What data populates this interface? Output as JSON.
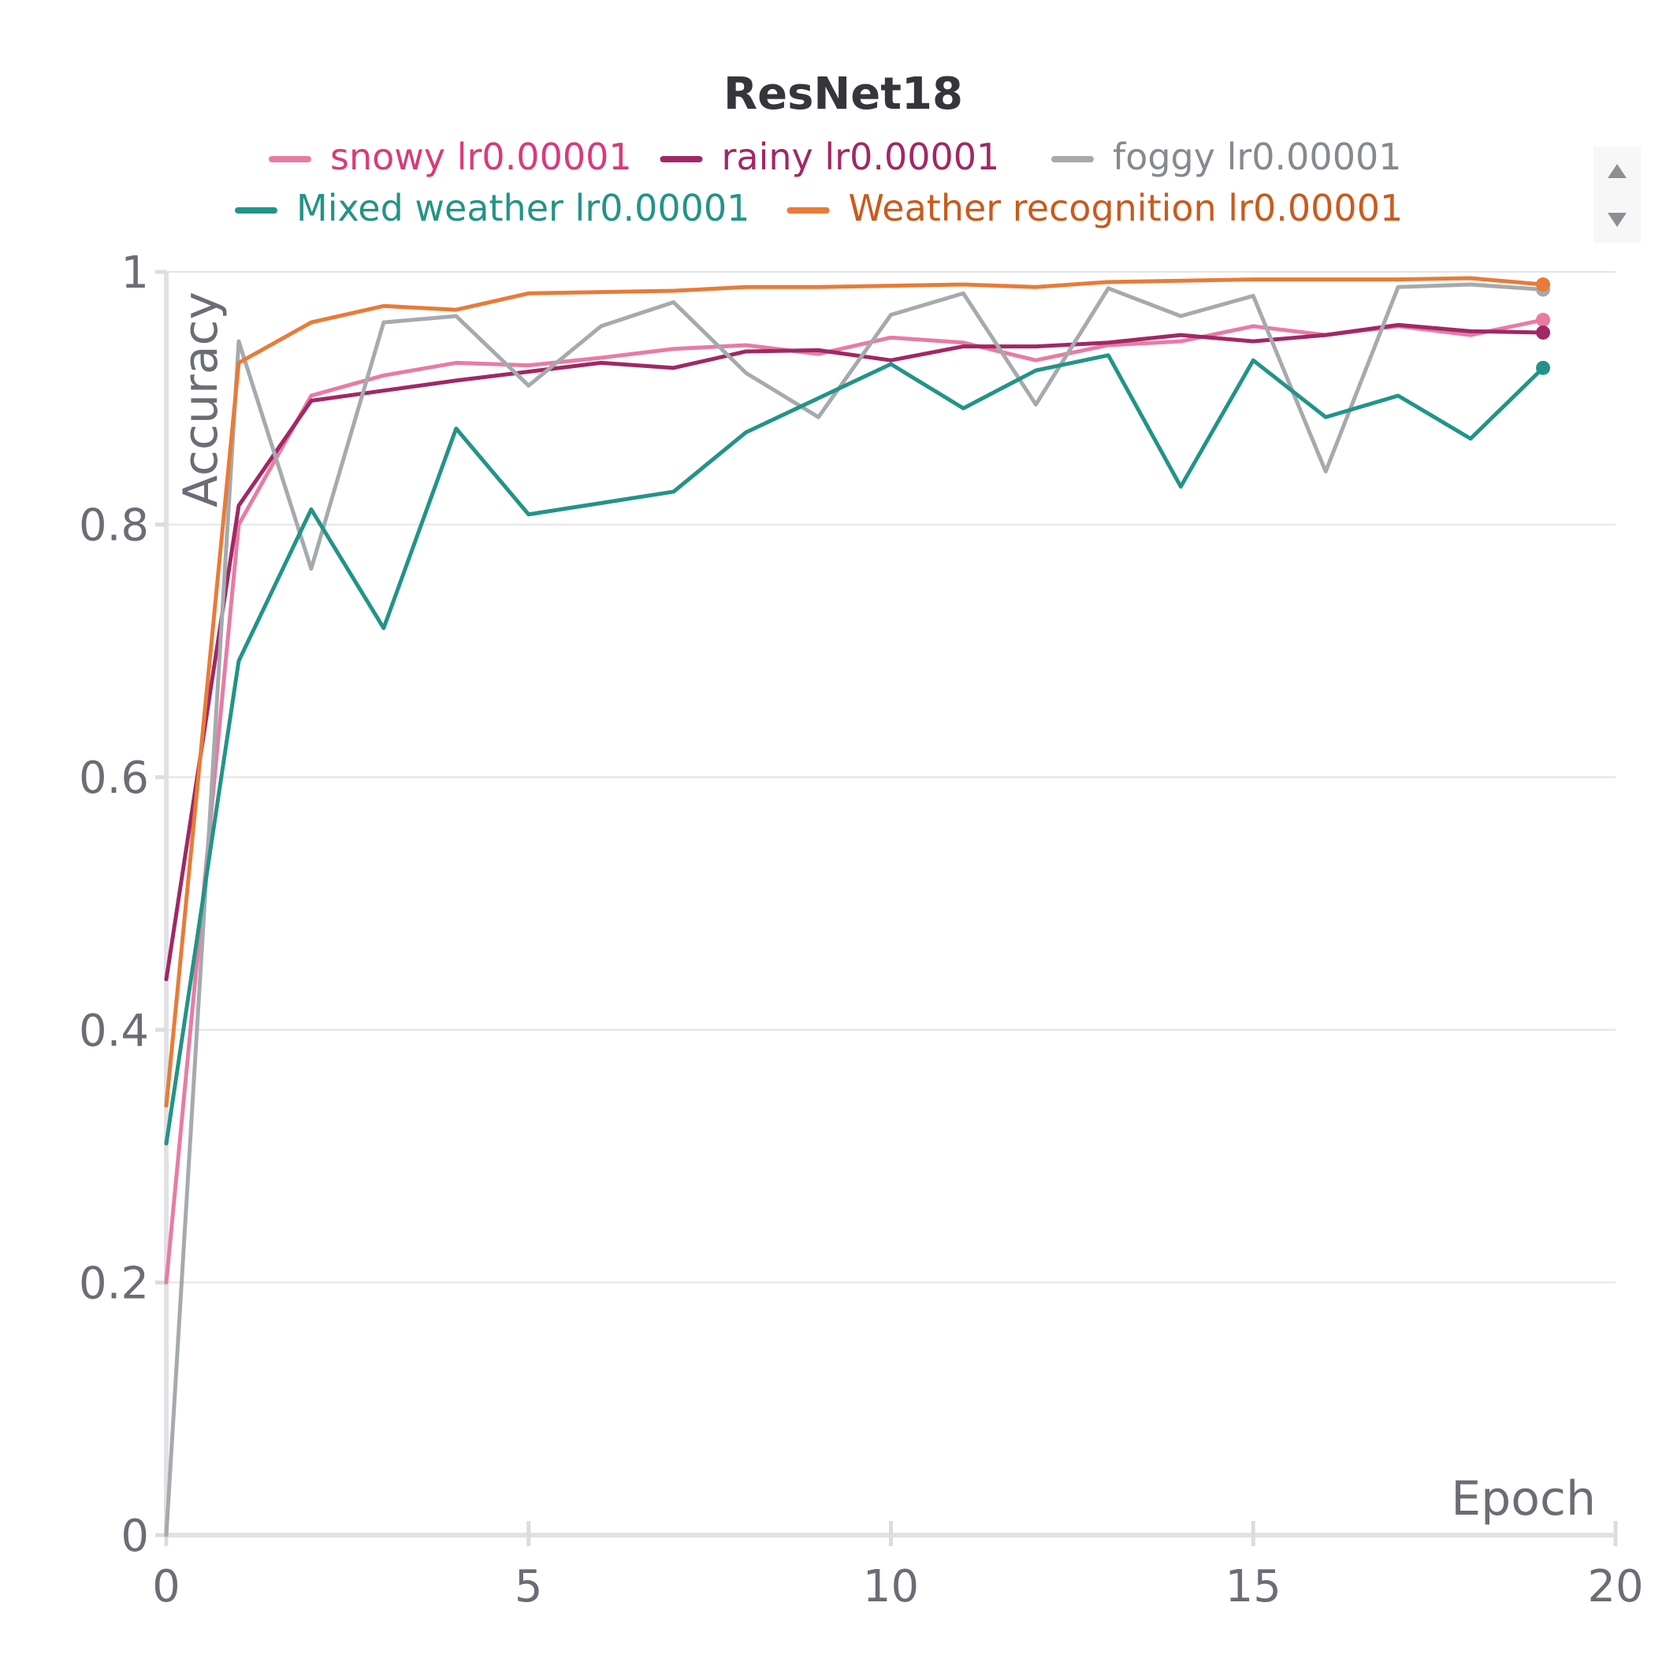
{
  "chart_data": {
    "type": "line",
    "title": "ResNet18",
    "xlabel": "Epoch",
    "ylabel": "Accuracy",
    "xlim": [
      0,
      20
    ],
    "ylim": [
      0,
      1
    ],
    "x_ticks": [
      0,
      5,
      10,
      15,
      20
    ],
    "x_tick_labels": [
      "0",
      "5",
      "10",
      "15",
      "20"
    ],
    "y_ticks": [
      0,
      0.2,
      0.4,
      0.6,
      0.8,
      1
    ],
    "y_tick_labels": [
      "0",
      "0.2",
      "0.4",
      "0.6",
      "0.8",
      "1"
    ],
    "grid": "horizontal",
    "legend_position": "top",
    "x": [
      0,
      1,
      2,
      3,
      4,
      5,
      6,
      7,
      8,
      9,
      10,
      11,
      12,
      13,
      14,
      15,
      16,
      17,
      18,
      19
    ],
    "series": [
      {
        "name": "snowy lr0.00001",
        "color": "#e87ba4",
        "text_color": "#d93a7a",
        "values": [
          0.2,
          0.8,
          0.902,
          0.918,
          0.928,
          0.926,
          0.932,
          0.939,
          0.942,
          0.935,
          0.948,
          0.944,
          0.93,
          0.942,
          0.945,
          0.957,
          0.95,
          0.957,
          0.95,
          0.962
        ]
      },
      {
        "name": "rainy lr0.00001",
        "color": "#a12864",
        "text_color": "#a12864",
        "values": [
          0.44,
          0.815,
          0.898,
          0.906,
          0.914,
          0.921,
          0.928,
          0.924,
          0.937,
          0.938,
          0.93,
          0.941,
          0.941,
          0.944,
          0.95,
          0.945,
          0.95,
          0.958,
          0.953,
          0.952
        ]
      },
      {
        "name": "foggy lr0.00001",
        "color": "#a5aaad",
        "text_color": "#858a8f",
        "values": [
          0.0,
          0.945,
          0.765,
          0.96,
          0.965,
          0.91,
          0.957,
          0.976,
          0.92,
          0.885,
          0.966,
          0.983,
          0.895,
          0.987,
          0.965,
          0.981,
          0.842,
          0.988,
          0.99,
          0.986
        ]
      },
      {
        "name": "Mixed weather lr0.00001",
        "color": "#229487",
        "text_color": "#229487",
        "values": [
          0.31,
          0.692,
          0.812,
          0.718,
          0.876,
          0.808,
          0.817,
          0.826,
          0.873,
          0.9,
          0.927,
          0.892,
          0.922,
          0.934,
          0.83,
          0.93,
          0.885,
          0.902,
          0.868,
          0.924
        ]
      },
      {
        "name": "Weather recognition lr0.00001",
        "color": "#e87b38",
        "text_color": "#c95b1d",
        "values": [
          0.34,
          0.928,
          0.96,
          0.973,
          0.97,
          0.983,
          0.984,
          0.985,
          0.988,
          0.988,
          0.989,
          0.99,
          0.988,
          0.992,
          0.993,
          0.994,
          0.994,
          0.994,
          0.995,
          0.99
        ]
      }
    ]
  }
}
